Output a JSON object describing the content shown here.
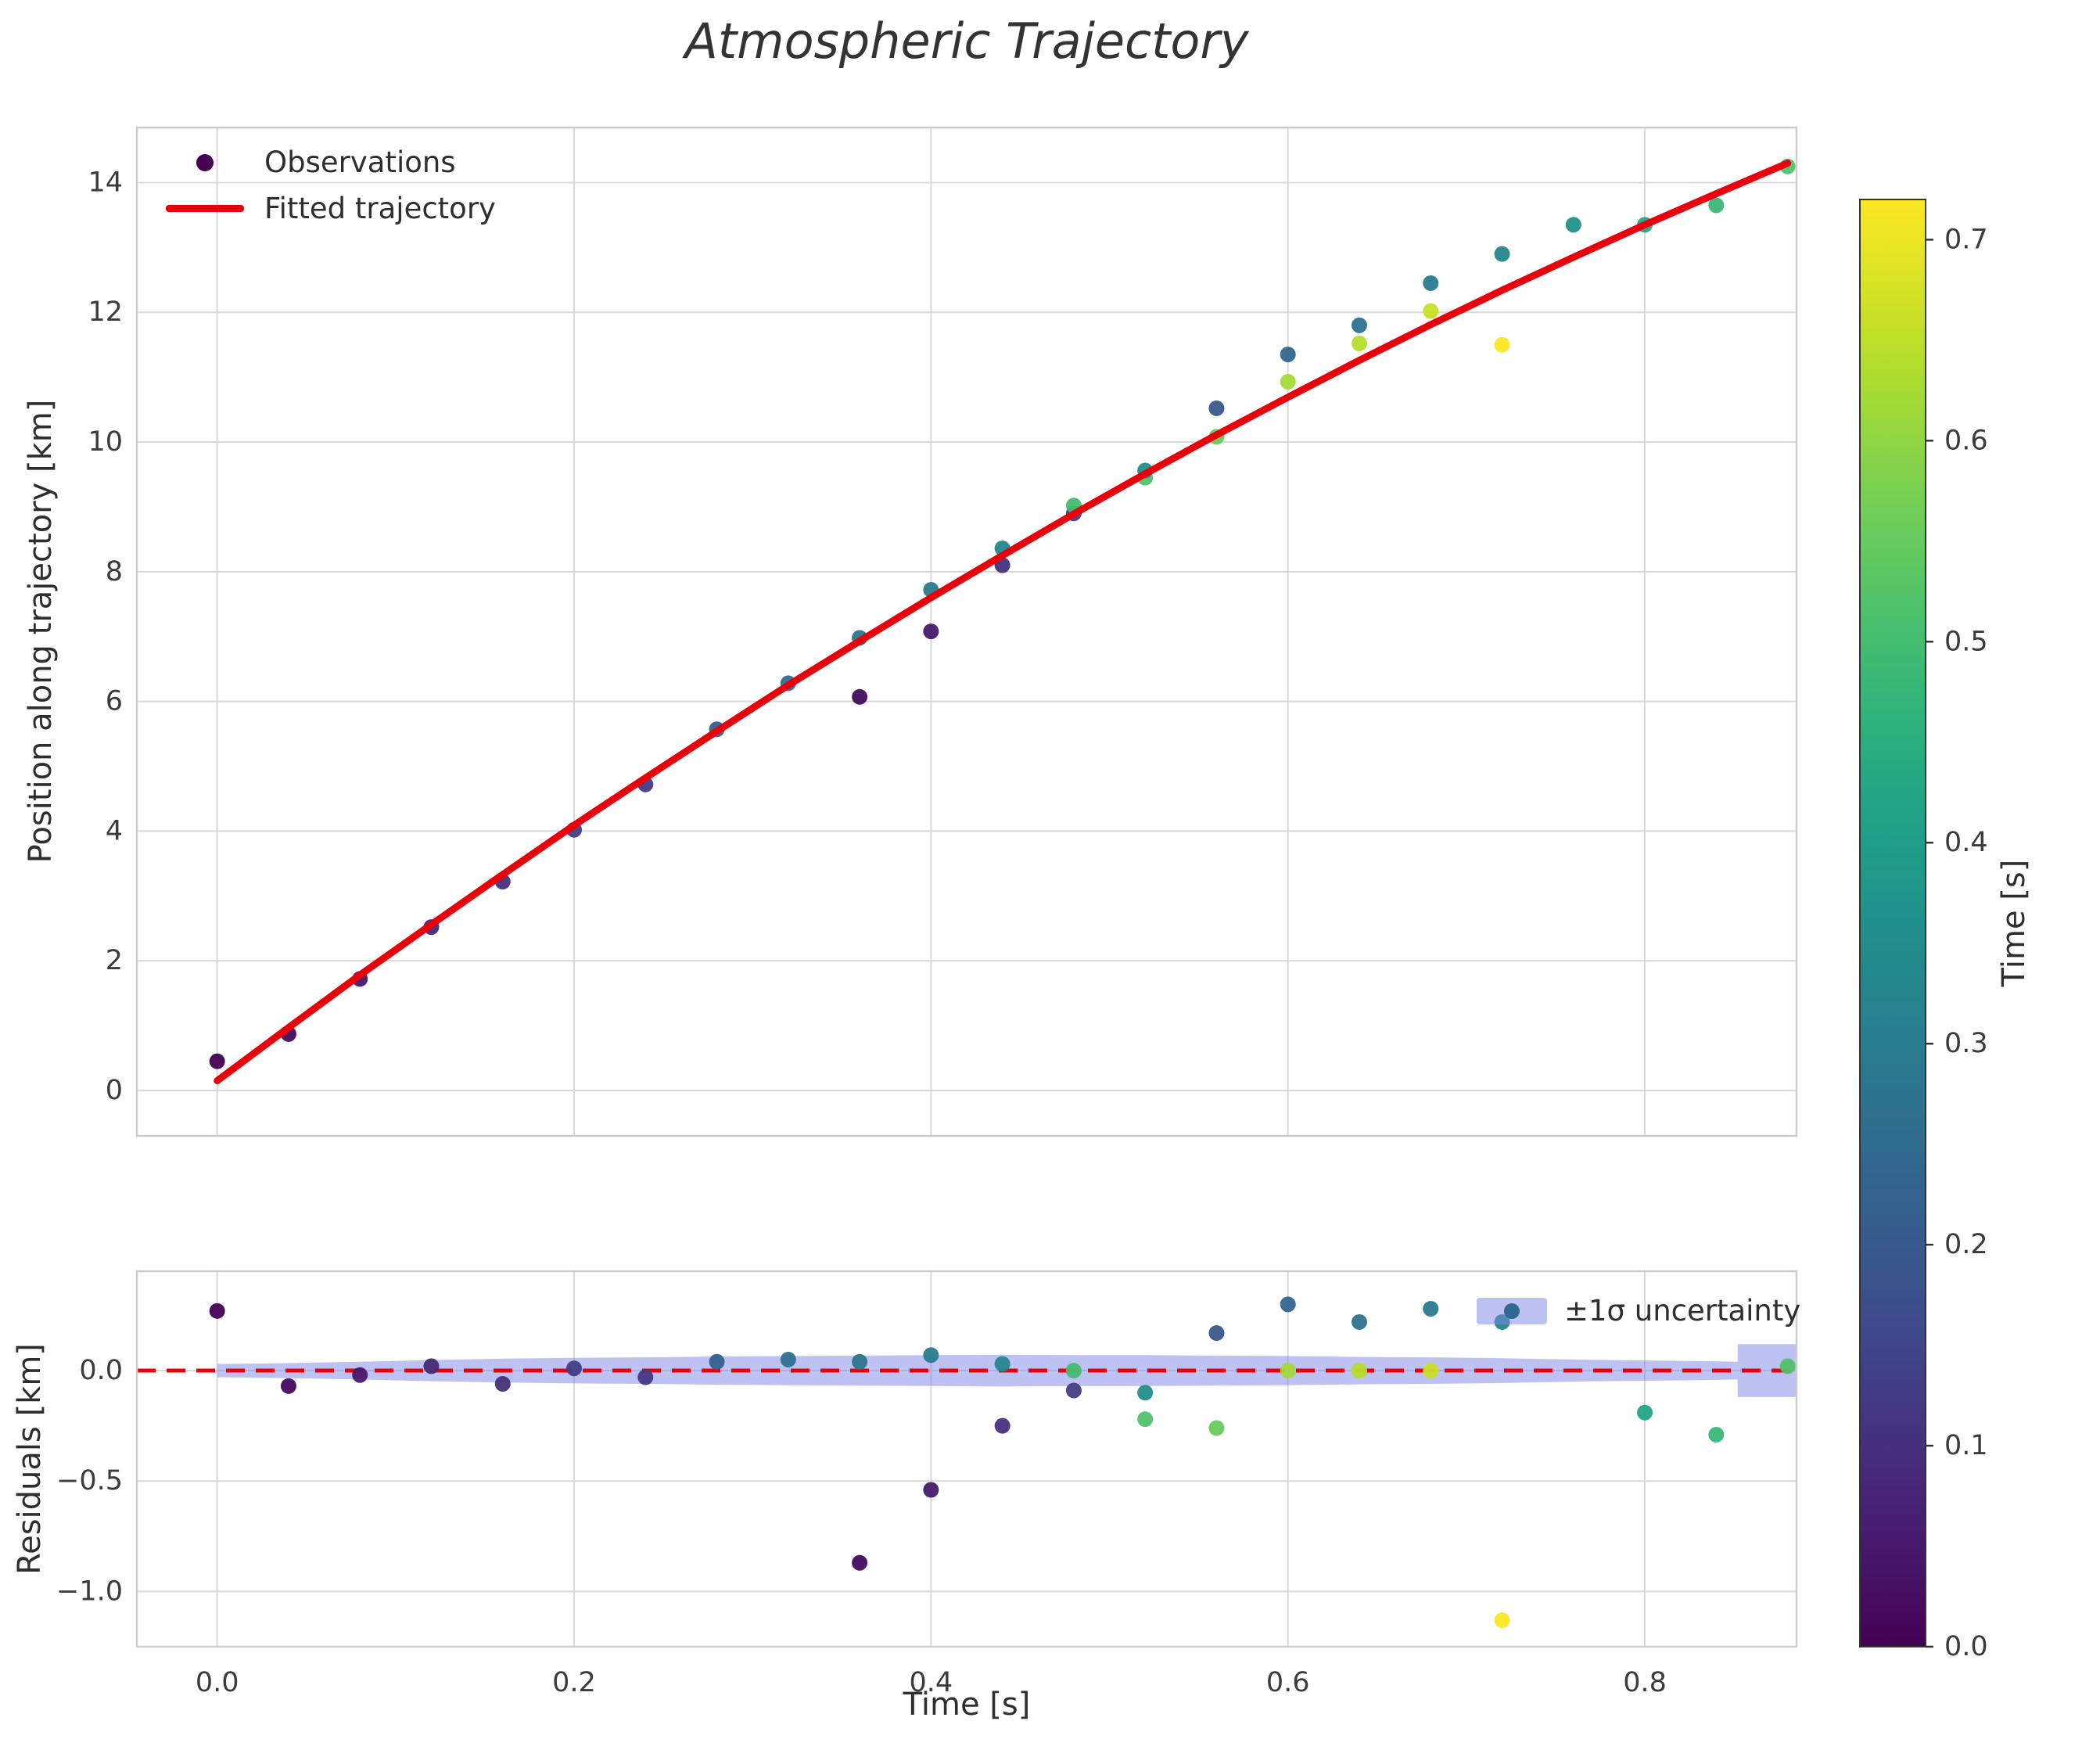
{
  "chart_data": {
    "type": "scatter",
    "title": "Atmospheric Trajectory",
    "xlabel": "Time [s]",
    "xticks": [
      0.0,
      0.2,
      0.4,
      0.6,
      0.8
    ],
    "xlim": [
      -0.045,
      0.885
    ],
    "colormap": "viridis",
    "colors": {
      "fit_line": "#e8000b",
      "zero_line": "#e8000b",
      "uncertainty_band": "#7b86e8",
      "band_legend_dot": "#31688e",
      "observation_legend_dot": "#440154",
      "grid": "#d9d9d9",
      "spine": "#cccccc"
    },
    "main": {
      "ylabel": "Position along trajectory [km]",
      "yticks": [
        0,
        2,
        4,
        6,
        8,
        10,
        12,
        14
      ],
      "ylim": [
        -0.7,
        14.85
      ],
      "legend": [
        "Observations",
        "Fitted trajectory"
      ],
      "points": [
        [
          0.0,
          0.45,
          0.0
        ],
        [
          0.04,
          0.87,
          0.02
        ],
        [
          0.08,
          1.72,
          0.05
        ],
        [
          0.12,
          2.52,
          0.08
        ],
        [
          0.16,
          3.22,
          0.1
        ],
        [
          0.2,
          4.02,
          0.13
        ],
        [
          0.24,
          4.72,
          0.12
        ],
        [
          0.28,
          5.57,
          0.22
        ],
        [
          0.32,
          6.28,
          0.26
        ],
        [
          0.36,
          6.07,
          0.02
        ],
        [
          0.36,
          6.98,
          0.28
        ],
        [
          0.4,
          7.08,
          0.05
        ],
        [
          0.4,
          7.72,
          0.3
        ],
        [
          0.44,
          8.1,
          0.1
        ],
        [
          0.44,
          8.36,
          0.33
        ],
        [
          0.48,
          8.9,
          0.13
        ],
        [
          0.48,
          9.02,
          0.5
        ],
        [
          0.52,
          9.45,
          0.52
        ],
        [
          0.52,
          9.56,
          0.35
        ],
        [
          0.56,
          10.08,
          0.55
        ],
        [
          0.56,
          10.52,
          0.2
        ],
        [
          0.6,
          10.93,
          0.62
        ],
        [
          0.6,
          11.35,
          0.24
        ],
        [
          0.64,
          11.52,
          0.64
        ],
        [
          0.64,
          11.8,
          0.27
        ],
        [
          0.68,
          12.02,
          0.66
        ],
        [
          0.68,
          12.45,
          0.3
        ],
        [
          0.72,
          11.5,
          0.72
        ],
        [
          0.72,
          12.9,
          0.33
        ],
        [
          0.76,
          13.35,
          0.36
        ],
        [
          0.8,
          13.35,
          0.42
        ],
        [
          0.84,
          13.65,
          0.48
        ],
        [
          0.88,
          14.25,
          0.52
        ]
      ],
      "fit_curve": {
        "x": [
          0.0,
          0.04,
          0.08,
          0.12,
          0.16,
          0.2,
          0.24,
          0.28,
          0.32,
          0.36,
          0.4,
          0.44,
          0.48,
          0.52,
          0.56,
          0.6,
          0.64,
          0.68,
          0.72,
          0.76,
          0.8,
          0.84,
          0.88
        ],
        "y": [
          0.15,
          0.97,
          1.78,
          2.56,
          3.33,
          4.09,
          4.82,
          5.54,
          6.25,
          6.93,
          7.6,
          8.25,
          8.89,
          9.51,
          10.11,
          10.69,
          11.26,
          11.81,
          12.34,
          12.85,
          13.35,
          13.83,
          14.3
        ]
      }
    },
    "residuals": {
      "ylabel": "Residuals [km]",
      "yticks": [
        0.0,
        -0.5,
        -1.0
      ],
      "ylim": [
        -1.25,
        0.45
      ],
      "legend": "±1σ uncertainty",
      "points": [
        [
          0.0,
          0.27,
          0.0
        ],
        [
          0.04,
          -0.07,
          0.02
        ],
        [
          0.08,
          -0.02,
          0.05
        ],
        [
          0.12,
          0.02,
          0.08
        ],
        [
          0.16,
          -0.06,
          0.1
        ],
        [
          0.2,
          0.01,
          0.13
        ],
        [
          0.24,
          -0.03,
          0.12
        ],
        [
          0.28,
          0.04,
          0.22
        ],
        [
          0.32,
          0.05,
          0.26
        ],
        [
          0.36,
          -0.87,
          0.02
        ],
        [
          0.36,
          0.04,
          0.28
        ],
        [
          0.4,
          -0.54,
          0.05
        ],
        [
          0.4,
          0.07,
          0.3
        ],
        [
          0.44,
          -0.25,
          0.1
        ],
        [
          0.44,
          0.03,
          0.33
        ],
        [
          0.48,
          -0.09,
          0.13
        ],
        [
          0.48,
          0.0,
          0.5
        ],
        [
          0.52,
          -0.1,
          0.35
        ],
        [
          0.52,
          -0.22,
          0.52
        ],
        [
          0.56,
          0.17,
          0.2
        ],
        [
          0.56,
          -0.26,
          0.55
        ],
        [
          0.6,
          0.3,
          0.24
        ],
        [
          0.6,
          0.0,
          0.62
        ],
        [
          0.64,
          0.22,
          0.27
        ],
        [
          0.64,
          0.0,
          0.64
        ],
        [
          0.68,
          0.28,
          0.3
        ],
        [
          0.68,
          0.0,
          0.66
        ],
        [
          0.72,
          0.22,
          0.33
        ],
        [
          0.72,
          -1.13,
          0.72
        ],
        [
          0.8,
          -0.19,
          0.42
        ],
        [
          0.84,
          -0.29,
          0.48
        ],
        [
          0.88,
          0.02,
          0.52
        ]
      ],
      "band": {
        "x": [
          0.0,
          0.04,
          0.08,
          0.12,
          0.16,
          0.2,
          0.24,
          0.28,
          0.32,
          0.36,
          0.4,
          0.44,
          0.48,
          0.52,
          0.56,
          0.6,
          0.64,
          0.68,
          0.72,
          0.76,
          0.8,
          0.84,
          0.852,
          0.852,
          0.885
        ],
        "sigma": [
          0.03,
          0.034,
          0.04,
          0.048,
          0.054,
          0.058,
          0.06,
          0.064,
          0.066,
          0.068,
          0.07,
          0.072,
          0.07,
          0.07,
          0.068,
          0.066,
          0.062,
          0.06,
          0.056,
          0.05,
          0.046,
          0.042,
          0.04,
          0.12,
          0.12
        ]
      }
    },
    "colorbar": {
      "label": "Time [s]",
      "ticks": [
        0.0,
        0.1,
        0.2,
        0.3,
        0.4,
        0.5,
        0.6,
        0.7
      ],
      "vmin": 0.0,
      "vmax": 0.72
    }
  }
}
